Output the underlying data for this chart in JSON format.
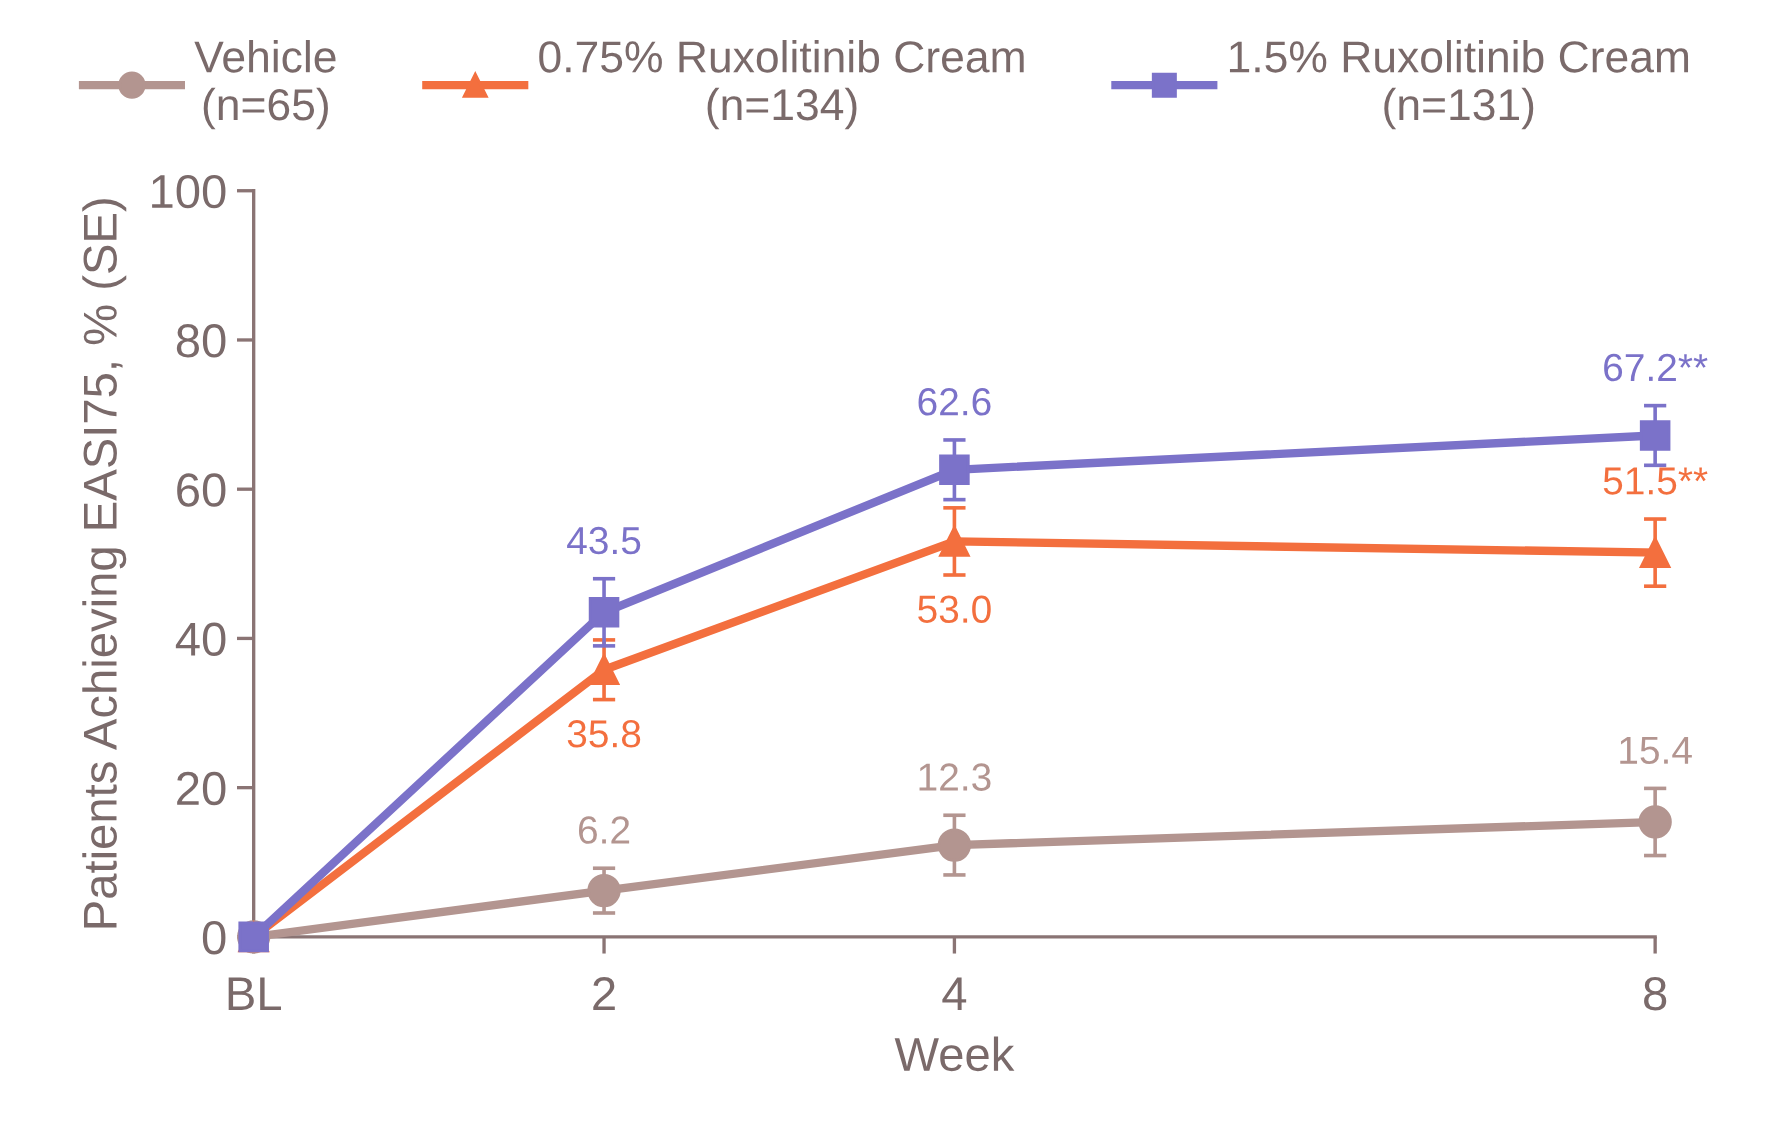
{
  "chart_data": {
    "type": "line",
    "xlabel": "Week",
    "ylabel": "Patients Achieving EASI75, % (SE)",
    "x": [
      0,
      2,
      4,
      8
    ],
    "xlim": [
      0,
      8
    ],
    "xticks": [
      {
        "value": 0,
        "label": "BL"
      },
      2,
      4,
      8
    ],
    "ylim": [
      0,
      100
    ],
    "yticks": [
      0,
      20,
      40,
      60,
      80,
      100
    ],
    "grid": false,
    "legend": "top",
    "line_style": "solid",
    "series": [
      {
        "name": "Vehicle\n(n=65)",
        "color": "#b39590",
        "marker": "circle",
        "values": [
          0,
          6.2,
          12.3,
          15.4
        ],
        "errors": [
          null,
          3,
          4,
          4.5
        ],
        "value_labels": [
          null,
          "6.2",
          "12.3",
          "15.4"
        ]
      },
      {
        "name": "0.75% Ruxolitinib Cream\n(n=134)",
        "color": "#f36f3e",
        "marker": "triangle",
        "values": [
          0,
          35.8,
          53.0,
          51.5
        ],
        "errors": [
          null,
          4,
          4.5,
          4.5
        ],
        "value_labels": [
          null,
          "35.8",
          "53.0",
          "51.5**"
        ]
      },
      {
        "name": "1.5% Ruxolitinib Cream\n(n=131)",
        "color": "#7b72c9",
        "marker": "square",
        "values": [
          0,
          43.5,
          62.6,
          67.2
        ],
        "errors": [
          null,
          4.5,
          4,
          4
        ],
        "value_labels": [
          null,
          "43.5",
          "62.6",
          "67.2**"
        ]
      }
    ]
  }
}
